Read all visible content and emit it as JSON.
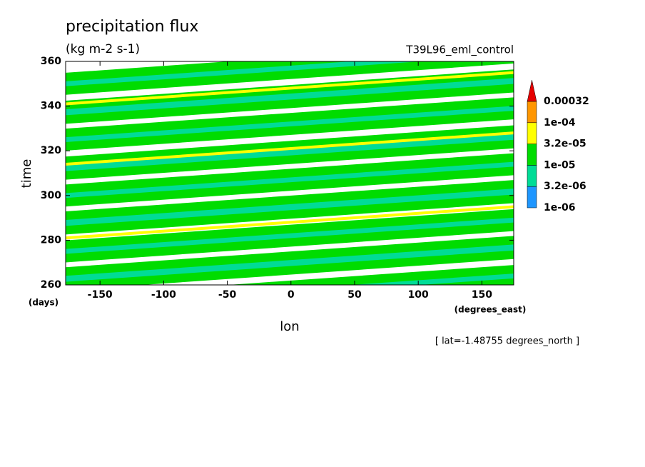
{
  "chart_data": {
    "type": "contour",
    "title": "precipitation flux",
    "subtitle": "(kg m-2 s-1)",
    "annotation": "T39L96_eml_control",
    "footnote": "[ lat=-1.48755 degrees_north ]",
    "y_label": "time",
    "y_units": "(days)",
    "x_label": "lon",
    "x_units": "(degrees_east)",
    "xlim": [
      -177,
      175
    ],
    "xticks": [
      -150,
      -100,
      -50,
      0,
      50,
      100,
      150
    ],
    "ylim": [
      260,
      360
    ],
    "yticks": [
      260,
      280,
      300,
      320,
      340,
      360
    ],
    "levels": [
      {
        "value": 1e-06,
        "label": "1e-06"
      },
      {
        "value": 3.2e-06,
        "label": "3.2e-06"
      },
      {
        "value": 1e-05,
        "label": "1e-05"
      },
      {
        "value": 3.2e-05,
        "label": "3.2e-05"
      },
      {
        "value": 0.0001,
        "label": "1e-04"
      },
      0.00032
    ],
    "colors": [
      "#1e96ff",
      "#00dc96",
      "#00dc00",
      "#ffff00",
      "#ff9600",
      "#e60000"
    ],
    "stripes": [
      {
        "t0": 247,
        "t1": 261,
        "level": 2
      },
      {
        "t0": 253,
        "t1": 267,
        "level": 2
      },
      {
        "t0": 259.5,
        "t1": 273.5,
        "level": 2
      },
      {
        "t0": 266,
        "t1": 280,
        "level": 2
      },
      {
        "t0": 272,
        "t1": 286,
        "level": 2
      },
      {
        "t0": 278,
        "t1": 292,
        "level": 2
      },
      {
        "t0": 284.5,
        "t1": 298.5,
        "level": 2
      },
      {
        "t0": 291,
        "t1": 305,
        "level": 2
      },
      {
        "t0": 297,
        "t1": 311,
        "level": 2
      },
      {
        "t0": 303,
        "t1": 317,
        "level": 2
      },
      {
        "t0": 309,
        "t1": 323,
        "level": 2
      },
      {
        "t0": 315.5,
        "t1": 329.5,
        "level": 2
      },
      {
        "t0": 322,
        "t1": 336,
        "level": 2
      },
      {
        "t0": 328,
        "t1": 342,
        "level": 2
      },
      {
        "t0": 334,
        "t1": 348,
        "level": 2
      },
      {
        "t0": 340.5,
        "t1": 354.5,
        "level": 2
      },
      {
        "t0": 347,
        "t1": 361,
        "level": 2
      },
      {
        "t0": 353,
        "t1": 367,
        "level": 2
      },
      {
        "t0": 250,
        "t1": 264,
        "level": 1
      },
      {
        "t0": 263,
        "t1": 277,
        "level": 1
      },
      {
        "t0": 275,
        "t1": 289,
        "level": 1
      },
      {
        "t0": 288,
        "t1": 302,
        "level": 1
      },
      {
        "t0": 300,
        "t1": 314,
        "level": 1
      },
      {
        "t0": 312,
        "t1": 326,
        "level": 1
      },
      {
        "t0": 325,
        "t1": 339,
        "level": 1
      },
      {
        "t0": 337,
        "t1": 351,
        "level": 1
      },
      {
        "t0": 350,
        "t1": 364,
        "level": 1
      },
      {
        "t0": 281,
        "t1": 295,
        "level": 3
      },
      {
        "t0": 314,
        "t1": 328,
        "level": 3
      },
      {
        "t0": 341,
        "t1": 355,
        "level": 3
      }
    ]
  }
}
